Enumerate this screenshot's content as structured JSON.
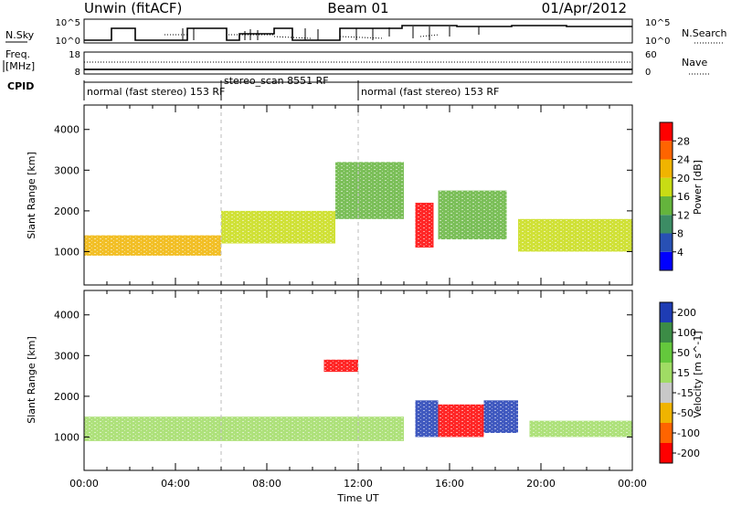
{
  "header": {
    "title_left": "Unwin (fitACF)",
    "title_center": "Beam 01",
    "title_right": "01/Apr/2012"
  },
  "strip_panels": {
    "nsky": {
      "left_label": "N.Sky",
      "left_ticks": [
        "10^5",
        "10^0"
      ],
      "right_ticks": [
        "10^5",
        "10^0"
      ],
      "right_label": "N.Search"
    },
    "freq": {
      "left_label_top": "Freq.",
      "left_label_bottom": "[MHz]",
      "left_ticks": [
        "18",
        "8"
      ],
      "right_ticks": [
        "60",
        "0"
      ],
      "right_label": "Nave"
    },
    "cpid": {
      "label": "CPID",
      "segments": [
        {
          "text": "normal (fast stereo) 153 RF",
          "start_hour": 0
        },
        {
          "text": "stereo_scan 8551 RF",
          "start_hour": 6
        },
        {
          "text": "normal (fast stereo) 153 RF",
          "start_hour": 12
        }
      ]
    }
  },
  "chart_data": [
    {
      "type": "heatmap",
      "name": "Power",
      "ylabel": "Slant Range [km]",
      "xlabel": "",
      "xlim": [
        0,
        24
      ],
      "ylim": [
        180,
        4600
      ],
      "yticks": [
        "1000",
        "2000",
        "3000",
        "4000"
      ],
      "ytick_values": [
        1000,
        2000,
        3000,
        4000
      ],
      "colorbar": {
        "label": "Power [dB]",
        "range": [
          0,
          32
        ],
        "ticks": [
          "4",
          "8",
          "12",
          "16",
          "20",
          "24",
          "28"
        ],
        "tick_values": [
          4,
          8,
          12,
          16,
          20,
          24,
          28
        ],
        "colors": [
          "#0000ff",
          "#2850b4",
          "#3c8c64",
          "#64b43c",
          "#c8dc14",
          "#f0b400",
          "#ff6400",
          "#ff0000"
        ]
      },
      "features": [
        {
          "t0": 0,
          "t1": 6,
          "r0": 900,
          "r1": 1400,
          "level": 20
        },
        {
          "t0": 6,
          "t1": 11,
          "r0": 1200,
          "r1": 2000,
          "level": 16
        },
        {
          "t0": 11,
          "t1": 14,
          "r0": 1800,
          "r1": 3200,
          "level": 12
        },
        {
          "t0": 14.5,
          "t1": 15.3,
          "r0": 1100,
          "r1": 2200,
          "level": 28
        },
        {
          "t0": 15.5,
          "t1": 18.5,
          "r0": 1300,
          "r1": 2500,
          "level": 14
        },
        {
          "t0": 19,
          "t1": 24,
          "r0": 1000,
          "r1": 1800,
          "level": 16
        }
      ]
    },
    {
      "type": "heatmap",
      "name": "Velocity",
      "ylabel": "Slant Range [km]",
      "xlabel": "Time UT",
      "xlim": [
        0,
        24
      ],
      "ylim": [
        180,
        4600
      ],
      "xticks": [
        "00:00",
        "04:00",
        "08:00",
        "12:00",
        "16:00",
        "20:00",
        "00:00"
      ],
      "xtick_values": [
        0,
        4,
        8,
        12,
        16,
        20,
        24
      ],
      "yticks": [
        "1000",
        "2000",
        "3000",
        "4000"
      ],
      "ytick_values": [
        1000,
        2000,
        3000,
        4000
      ],
      "colorbar": {
        "label": "Velocity [m s^-1]",
        "ticks": [
          "200",
          "100",
          "50",
          "15",
          "-15",
          "-50",
          "-100",
          "-200"
        ],
        "colors": [
          "#1e3cb4",
          "#3c8c46",
          "#64c83c",
          "#a0dc64",
          "#c8c8c8",
          "#f0b400",
          "#ff6400",
          "#ff0000"
        ]
      },
      "features": [
        {
          "t0": 0,
          "t1": 14,
          "r0": 900,
          "r1": 1500,
          "level": 0
        },
        {
          "t0": 10.5,
          "t1": 12,
          "r0": 2600,
          "r1": 2900,
          "level": -250
        },
        {
          "t0": 14.5,
          "t1": 15.5,
          "r0": 1000,
          "r1": 1900,
          "level": 150
        },
        {
          "t0": 15.5,
          "t1": 17.5,
          "r0": 1000,
          "r1": 1800,
          "level": -200
        },
        {
          "t0": 17.5,
          "t1": 19,
          "r0": 1100,
          "r1": 1900,
          "level": 150
        },
        {
          "t0": 19.5,
          "t1": 24,
          "r0": 1000,
          "r1": 1400,
          "level": 0
        }
      ]
    }
  ]
}
